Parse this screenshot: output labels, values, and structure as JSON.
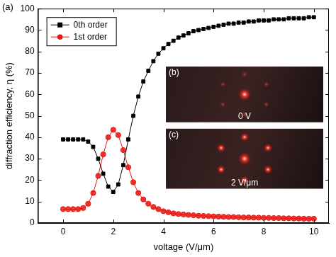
{
  "chart_data": {
    "type": "line",
    "x_label": "voltage (V/μm)",
    "y_label": "diffraction efficiency, η (%)",
    "x": [
      0,
      0.2,
      0.4,
      0.6,
      0.8,
      1,
      1.2,
      1.4,
      1.6,
      1.8,
      2,
      2.2,
      2.4,
      2.6,
      2.8,
      3,
      3.2,
      3.4,
      3.6,
      3.8,
      4,
      4.2,
      4.4,
      4.6,
      4.8,
      5,
      5.2,
      5.4,
      5.6,
      5.8,
      6,
      6.2,
      6.4,
      6.6,
      6.8,
      7,
      7.2,
      7.4,
      7.6,
      7.8,
      8,
      8.2,
      8.4,
      8.6,
      8.8,
      9,
      9.2,
      9.4,
      9.6,
      9.8,
      10
    ],
    "series": [
      {
        "name": "0th order",
        "color": "#000000",
        "marker": "square",
        "line_style": "solid",
        "values": [
          39,
          39,
          39,
          39,
          39,
          38,
          35.5,
          30,
          23,
          17,
          14.5,
          18,
          27,
          39,
          50,
          59,
          66,
          71,
          75.5,
          79,
          81.5,
          83.5,
          85,
          86.5,
          87.5,
          88.5,
          89.5,
          90,
          90.5,
          91,
          91.5,
          92,
          92.5,
          93,
          93,
          93.5,
          93.5,
          94,
          94,
          94.5,
          94.5,
          94.5,
          95,
          95,
          95,
          95.5,
          95.5,
          95.5,
          95.5,
          96,
          96
        ]
      },
      {
        "name": "1st order",
        "color": "#e8150f",
        "marker": "circle",
        "line_style": "solid",
        "values": [
          6.5,
          6.5,
          6.5,
          6.5,
          7,
          9,
          14,
          22,
          32,
          40,
          43.5,
          41,
          34,
          26,
          19,
          14,
          11,
          9,
          7.5,
          6.5,
          5.5,
          5,
          4.5,
          4.2,
          4,
          3.8,
          3.6,
          3.4,
          3.3,
          3.2,
          3.1,
          3,
          2.9,
          2.8,
          2.8,
          2.7,
          2.6,
          2.6,
          2.5,
          2.5,
          2.4,
          2.4,
          2.3,
          2.3,
          2.2,
          2.2,
          2.1,
          2.1,
          2,
          2,
          2
        ]
      }
    ],
    "xlim": [
      -1,
      10.6
    ],
    "xticks": [
      0,
      2,
      4,
      6,
      8,
      10
    ],
    "ylim": [
      0,
      100
    ],
    "yticks": [
      0,
      10,
      20,
      30,
      40,
      50,
      60,
      70,
      80,
      90,
      100
    ],
    "grid": false,
    "legend": "upper left",
    "annotations": {
      "panel": "(a)",
      "insets": [
        {
          "panel": "(b)",
          "label": "0 V"
        },
        {
          "panel": "(c)",
          "label": "2 V/μm"
        }
      ]
    }
  }
}
